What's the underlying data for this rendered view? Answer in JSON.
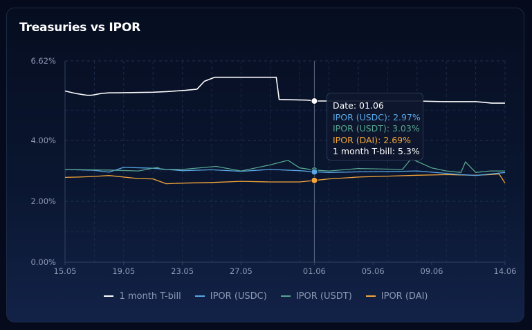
{
  "chart_data": {
    "type": "line",
    "title": "Treasuries vs IPOR",
    "xlabel": "",
    "ylabel": "",
    "ylim": [
      0,
      6.62
    ],
    "y_ticks": [
      "0.00%",
      "2.00%",
      "4.00%",
      "6.62%"
    ],
    "y_tick_values": [
      0,
      2,
      4,
      6.62
    ],
    "x_ticks": [
      "15.05",
      "19.05",
      "23.05",
      "27.05",
      "01.06",
      "05.06",
      "09.06",
      "14.06"
    ],
    "x_tick_days": [
      0,
      4,
      8,
      12,
      17,
      21,
      25,
      30
    ],
    "x_range_days": [
      0,
      30
    ],
    "grid": true,
    "legend_position": "bottom",
    "series": [
      {
        "name": "1 month T-bill",
        "color": "#ffffff",
        "x": [
          0,
          0.7,
          1.5,
          1.8,
          2.5,
          3.0,
          3.5,
          6.0,
          6.9,
          8.2,
          9.0,
          9.5,
          10.2,
          11.7,
          14.4,
          14.6,
          16.5,
          17.1,
          18.0,
          20.0,
          22.0,
          24.0,
          25.8,
          27.0,
          28.0,
          28.5,
          29.1,
          30.0
        ],
        "y": [
          5.63,
          5.55,
          5.49,
          5.49,
          5.55,
          5.57,
          5.57,
          5.59,
          5.61,
          5.65,
          5.69,
          5.95,
          6.08,
          6.08,
          6.08,
          5.35,
          5.33,
          5.3,
          5.3,
          5.3,
          5.3,
          5.3,
          5.28,
          5.28,
          5.28,
          5.26,
          5.23,
          5.23
        ]
      },
      {
        "name": "IPOR (USDC)",
        "color": "#5aa7e6",
        "x": [
          0,
          2,
          3,
          4,
          6,
          8,
          10,
          12,
          14,
          16,
          17,
          18,
          20,
          22,
          24,
          26,
          27,
          28,
          29,
          30
        ],
        "y": [
          3.05,
          3.02,
          2.96,
          3.12,
          3.09,
          3.01,
          3.04,
          2.99,
          3.05,
          3.01,
          2.97,
          2.95,
          2.97,
          2.98,
          3.0,
          2.92,
          2.88,
          2.85,
          2.9,
          2.95
        ]
      },
      {
        "name": "IPOR (USDT)",
        "color": "#56a58f",
        "x": [
          0,
          3,
          5,
          6.3,
          6.6,
          8,
          10.3,
          12,
          14,
          15.2,
          16,
          17,
          18,
          20,
          23,
          23.6,
          25,
          26,
          27,
          27.3,
          28,
          29,
          30
        ],
        "y": [
          3.05,
          3.03,
          3.0,
          3.12,
          3.05,
          3.05,
          3.15,
          3.0,
          3.2,
          3.35,
          3.1,
          3.03,
          3.0,
          3.08,
          3.05,
          3.4,
          3.1,
          3.0,
          2.95,
          3.3,
          2.95,
          3.0,
          3.0
        ]
      },
      {
        "name": "IPOR (DAI)",
        "color": "#f5a63a",
        "x": [
          0,
          1,
          2,
          3,
          5,
          6,
          6.9,
          8,
          10,
          12,
          14,
          16,
          17,
          18,
          20,
          22,
          24,
          26,
          28,
          29,
          29.6,
          30
        ],
        "y": [
          2.79,
          2.8,
          2.82,
          2.85,
          2.75,
          2.74,
          2.58,
          2.6,
          2.62,
          2.66,
          2.64,
          2.64,
          2.69,
          2.74,
          2.8,
          2.83,
          2.86,
          2.88,
          2.86,
          2.88,
          2.9,
          2.6
        ]
      }
    ],
    "hover": {
      "x": 17,
      "date_line": "Date: 01.06",
      "lines": [
        {
          "text": "IPOR (USDC): 2.97%",
          "color": "#5aa7e6"
        },
        {
          "text": "IPOR (USDT): 3.03%",
          "color": "#56a58f"
        },
        {
          "text": "IPOR (DAI): 2.69%",
          "color": "#f5a63a"
        },
        {
          "text": "1 month T-bill: 5.3%",
          "color": "#ffffff"
        }
      ],
      "point_values": [
        5.3,
        3.03,
        2.97,
        2.69
      ],
      "point_colors": [
        "#ffffff",
        "#56a58f",
        "#5aa7e6",
        "#f5a63a"
      ]
    }
  }
}
